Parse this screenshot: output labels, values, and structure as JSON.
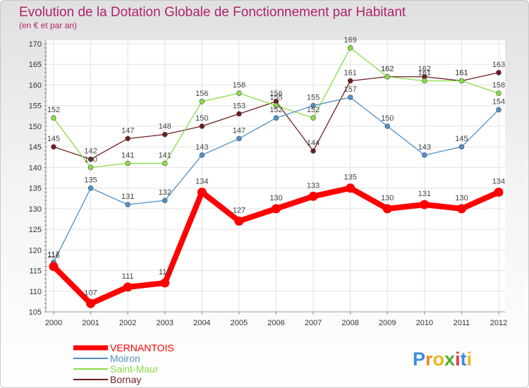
{
  "chart_data": {
    "type": "line",
    "title": "Evolution de la Dotation Globale de Fonctionnement par Habitant",
    "subtitle": "(en € et par an)",
    "xlabel": "",
    "ylabel": "",
    "x": [
      "2000",
      "2001",
      "2002",
      "2003",
      "2004",
      "2005",
      "2006",
      "2007",
      "2008",
      "2009",
      "2010",
      "2011",
      "2012"
    ],
    "ylim": [
      105,
      170
    ],
    "yticks": [
      105,
      110,
      115,
      120,
      125,
      130,
      135,
      140,
      145,
      150,
      155,
      160,
      165,
      170
    ],
    "grid": true,
    "legend_position": "bottom-left",
    "series": [
      {
        "name": "VERNANTOIS",
        "color": "#ff0000",
        "values": [
          116,
          107,
          111,
          112,
          134,
          127,
          130,
          133,
          135,
          130,
          131,
          130,
          134
        ]
      },
      {
        "name": "Moiron",
        "color": "#4f8fc6",
        "values": [
          117,
          135,
          131,
          132,
          143,
          147,
          152,
          155,
          157,
          150,
          143,
          145,
          154
        ]
      },
      {
        "name": "Saint-Maur",
        "color": "#88dd44",
        "values": [
          152,
          140,
          141,
          141,
          156,
          158,
          155,
          152,
          169,
          162,
          161,
          161,
          158
        ]
      },
      {
        "name": "Bornay",
        "color": "#6b1e1e",
        "values": [
          145,
          142,
          147,
          148,
          150,
          153,
          156,
          144,
          161,
          162,
          162,
          161,
          163
        ]
      }
    ]
  },
  "logo": {
    "text": "Proxiti"
  }
}
